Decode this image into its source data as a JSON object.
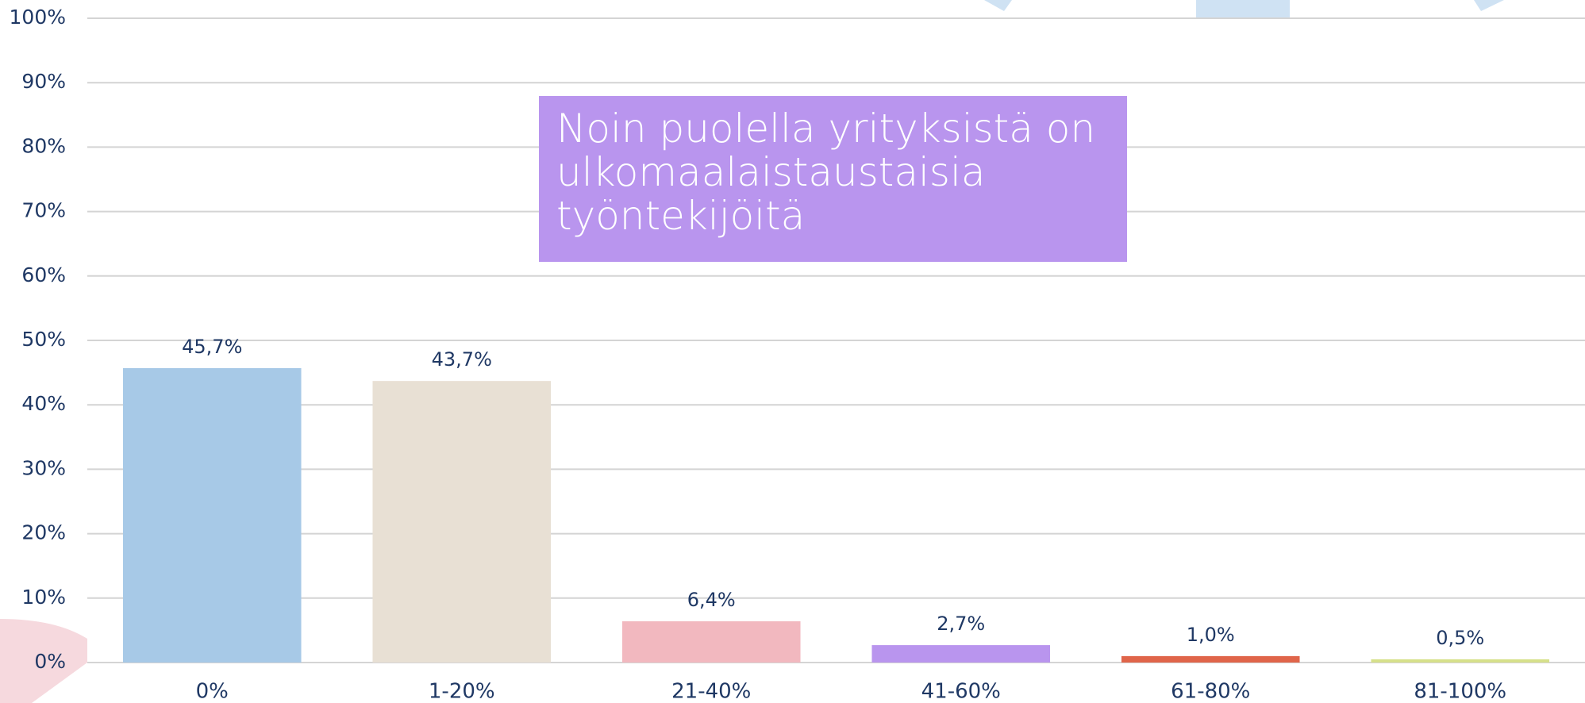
{
  "chart_data": {
    "type": "bar",
    "annotation": "Noin puolella yrityksistä on ulkomaalaistaustaisia työntekijöitä",
    "categories": [
      "0%",
      "1-20%",
      "21-40%",
      "41-60%",
      "61-80%",
      "81-100%"
    ],
    "values": [
      45.7,
      43.7,
      6.4,
      2.7,
      1.0,
      0.5
    ],
    "value_labels": [
      "45,7%",
      "43,7%",
      "6,4%",
      "2,7%",
      "1,0%",
      "0,5%"
    ],
    "colors": [
      "#a7c9e7",
      "#e8e0d4",
      "#f2b8bf",
      "#b995ee",
      "#e0654a",
      "#d6e08a"
    ],
    "ylim": [
      0,
      100
    ],
    "yticks": [
      {
        "value": 0,
        "label": "0%"
      },
      {
        "value": 10,
        "label": "10%"
      },
      {
        "value": 20,
        "label": "20%"
      },
      {
        "value": 30,
        "label": "30%"
      },
      {
        "value": 40,
        "label": "40%"
      },
      {
        "value": 50,
        "label": "50%"
      },
      {
        "value": 60,
        "label": "60%"
      },
      {
        "value": 70,
        "label": "70%"
      },
      {
        "value": 80,
        "label": "80%"
      },
      {
        "value": 90,
        "label": "90%"
      },
      {
        "value": 100,
        "label": "100%"
      }
    ],
    "grid": true
  }
}
